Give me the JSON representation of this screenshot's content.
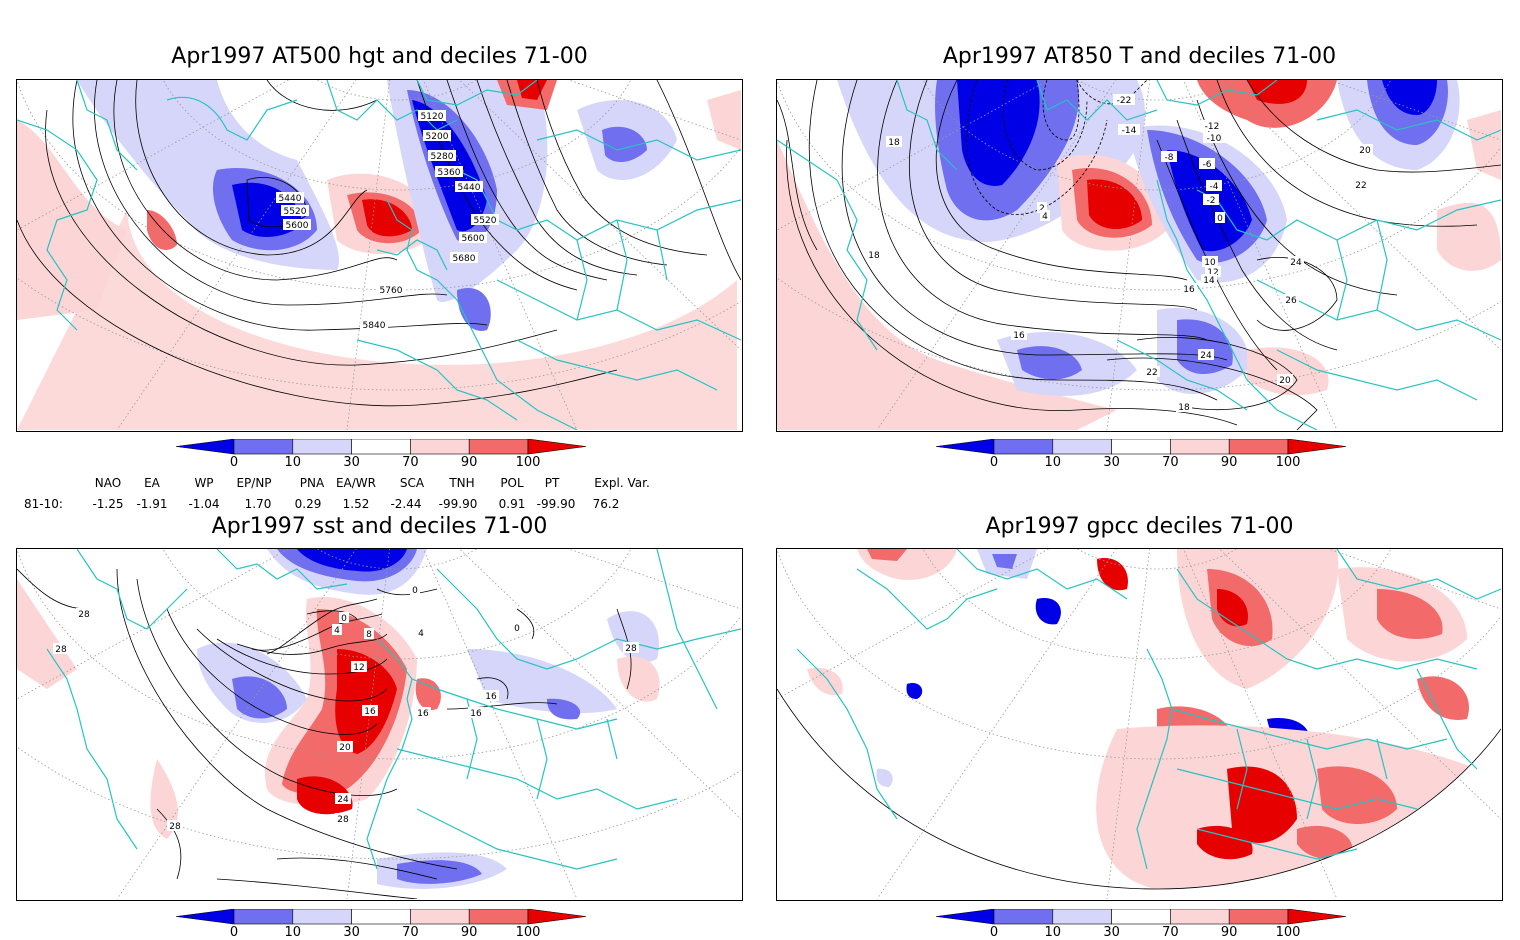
{
  "panels": [
    {
      "title": "Apr1997 AT500 hgt and deciles 71-00",
      "contour_labels": [
        "5120",
        "5200",
        "5280",
        "5360",
        "5440",
        "5440",
        "5520",
        "5520",
        "5600",
        "5600",
        "5680",
        "5760",
        "5840"
      ]
    },
    {
      "title": "Apr1997 AT850 T and deciles 71-00",
      "contour_labels": [
        "-22",
        "-14",
        "-12",
        "-10",
        "-8",
        "-6",
        "-4",
        "-2",
        "0",
        "2",
        "4",
        "10",
        "12",
        "14",
        "16",
        "16",
        "18",
        "18",
        "18",
        "20",
        "20",
        "22",
        "22",
        "24",
        "24",
        "26"
      ]
    },
    {
      "title": "Apr1997 sst and deciles 71-00",
      "contour_labels": [
        "28",
        "28",
        "28",
        "28",
        "28",
        "24",
        "20",
        "16",
        "16",
        "16",
        "16",
        "12",
        "8",
        "4",
        "4",
        "0",
        "0",
        "0"
      ]
    },
    {
      "title": "Apr1997 gpcc deciles 71-00",
      "contour_labels": []
    }
  ],
  "colorbar": {
    "labels": [
      "0",
      "10",
      "30",
      "70",
      "90",
      "100"
    ],
    "colors": [
      "#0000e6",
      "#6f6ff0",
      "#d6d6fa",
      "#ffffff",
      "#fcd6d6",
      "#f26a6a",
      "#e60000"
    ]
  },
  "indices": {
    "headers": [
      "NAO",
      "EA",
      "WP",
      "EP/NP",
      "PNA",
      "EA/WR",
      "SCA",
      "TNH",
      "POL",
      "PT",
      "Expl. Var."
    ],
    "row_label": "81-10:",
    "values": [
      "-1.25",
      "-1.91",
      "-1.04",
      "1.70",
      "0.29",
      "1.52",
      "-2.44",
      "-99.90",
      "0.91",
      "-99.90",
      "76.2"
    ]
  },
  "style": {
    "coast_color": "#27c3c3",
    "grid_color": "#999999",
    "contour_color": "#000000"
  }
}
